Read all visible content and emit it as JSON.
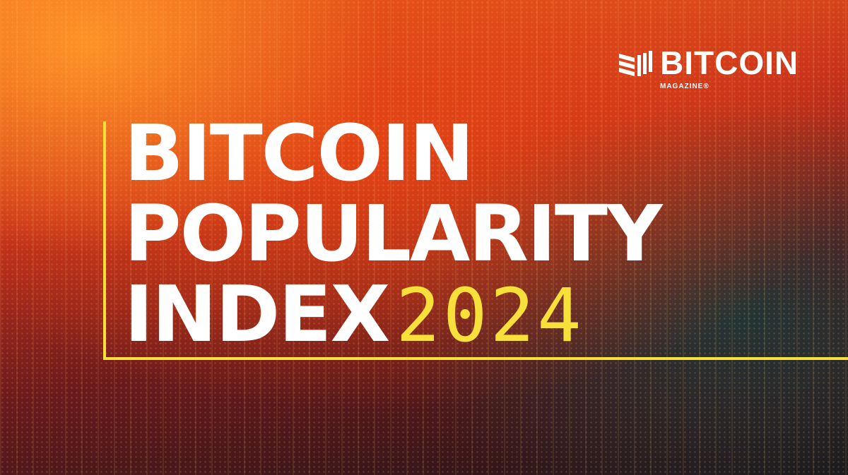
{
  "title": {
    "line1": "BITCOIN",
    "line2": "POPULARITY",
    "line3": "INDEX",
    "year": "2024"
  },
  "logo": {
    "wordmark": "BITCOIN",
    "sub": "MAGAZINE®"
  },
  "colors": {
    "accent": "#f7e03a",
    "text": "#ffffff",
    "background": "#c8321c"
  }
}
